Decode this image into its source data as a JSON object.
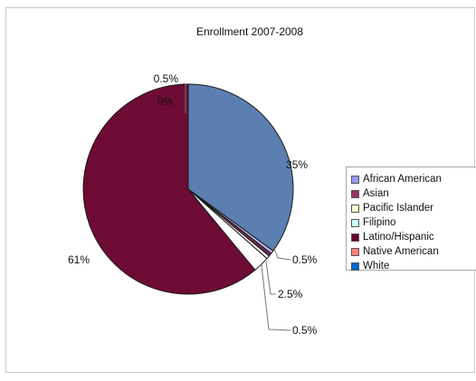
{
  "chart_data": {
    "type": "pie",
    "title": "Enrollment 2007-2008",
    "categories": [
      "African American",
      "Asian",
      "Pacific Islander",
      "Filipino",
      "Latino/Hispanic",
      "Native American",
      "White"
    ],
    "values": [
      0.5,
      0.5,
      0.5,
      2.5,
      61,
      0,
      35
    ],
    "value_labels": [
      "0.5%",
      "0.5%",
      "0.5%",
      "2.5%",
      "61%",
      "0%",
      "35%"
    ],
    "colors": [
      "#9999ff",
      "#993366",
      "#ffffcc",
      "#ccffff",
      "#660033",
      "#ff8080",
      "#0066cc"
    ],
    "slice_fill_colors": [
      "#b6b6ee",
      "#7b2a4d",
      "#ffffff",
      "#ffffff",
      "#6e0b35",
      "#e2b1b1",
      "#5b7fb0"
    ],
    "legend_placement": "right",
    "grid": false
  }
}
